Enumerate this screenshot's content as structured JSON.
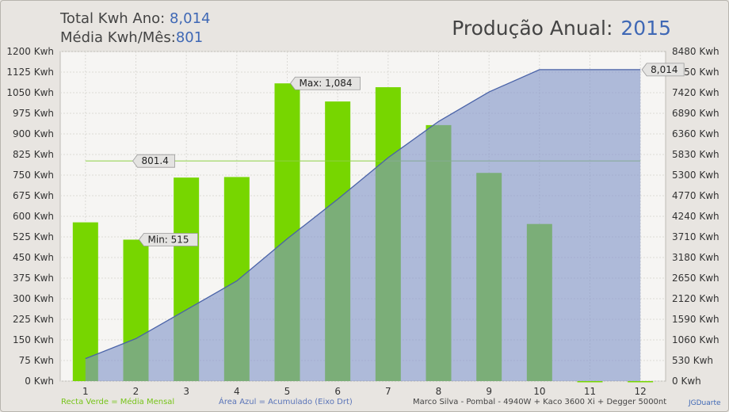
{
  "header": {
    "total_label": "Total Kwh Ano:",
    "total_value": "8,014",
    "media_label": "Média Kwh/Mês:",
    "media_value": "801",
    "title": "Produção Anual:",
    "year": "2015"
  },
  "footer": {
    "legend_green": "Recta Verde = Média Mensal",
    "legend_blue": "Área Azul = Acumulado (Eixo Drt)",
    "system": "Marco Silva - Pombal - 4940W + Kaco 3600 Xi + Degger 5000nt",
    "credit": "JGDuarte"
  },
  "colors": {
    "bar_green": "#77d600",
    "bar_dark_green": "#5aa43a",
    "area_blue": "#7f93c8",
    "line_blue": "#4a63a8",
    "avg_line": "#8ed045",
    "accent_text": "#3f68b5"
  },
  "chart_data": {
    "type": "bar",
    "categories": [
      "1",
      "2",
      "3",
      "4",
      "5",
      "6",
      "7",
      "8",
      "9",
      "10",
      "11",
      "12"
    ],
    "series": [
      {
        "type": "bar",
        "axis": "left",
        "values": [
          578,
          515,
          741,
          743,
          1084,
          1018,
          1070,
          932,
          758,
          572,
          0,
          0
        ]
      },
      {
        "type": "area",
        "axis": "right",
        "values": [
          578,
          1093,
          1834,
          2577,
          3661,
          4679,
          5749,
          6681,
          7439,
          8014,
          8014,
          8014
        ]
      },
      {
        "type": "line",
        "axis": "left",
        "values": [
          801.4,
          801.4,
          801.4,
          801.4,
          801.4,
          801.4,
          801.4,
          801.4,
          801.4,
          801.4,
          801.4,
          801.4
        ]
      }
    ],
    "left_axis": {
      "ylim": [
        0,
        1200
      ],
      "ticks": [
        "0 Kwh",
        "75 Kwh",
        "150 Kwh",
        "225 Kwh",
        "300 Kwh",
        "375 Kwh",
        "450 Kwh",
        "525 Kwh",
        "600 Kwh",
        "675 Kwh",
        "750 Kwh",
        "825 Kwh",
        "900 Kwh",
        "975 Kwh",
        "1050 Kwh",
        "1125 Kwh",
        "1200 Kwh"
      ]
    },
    "right_axis": {
      "ylim": [
        0,
        8480
      ],
      "ticks": [
        "0 Kwh",
        "530 Kwh",
        "1060 Kwh",
        "1590 Kwh",
        "2120 Kwh",
        "2650 Kwh",
        "3180 Kwh",
        "3710 Kwh",
        "4240 Kwh",
        "4770 Kwh",
        "5300 Kwh",
        "5830 Kwh",
        "6360 Kwh",
        "6890 Kwh",
        "7420 Kwh",
        "7950 Kwh",
        "8480 Kwh"
      ]
    },
    "annotations": {
      "max": "Max: 1,084",
      "min": "Min: 515",
      "avg": "801.4",
      "total": "8,014"
    },
    "grid": true
  }
}
